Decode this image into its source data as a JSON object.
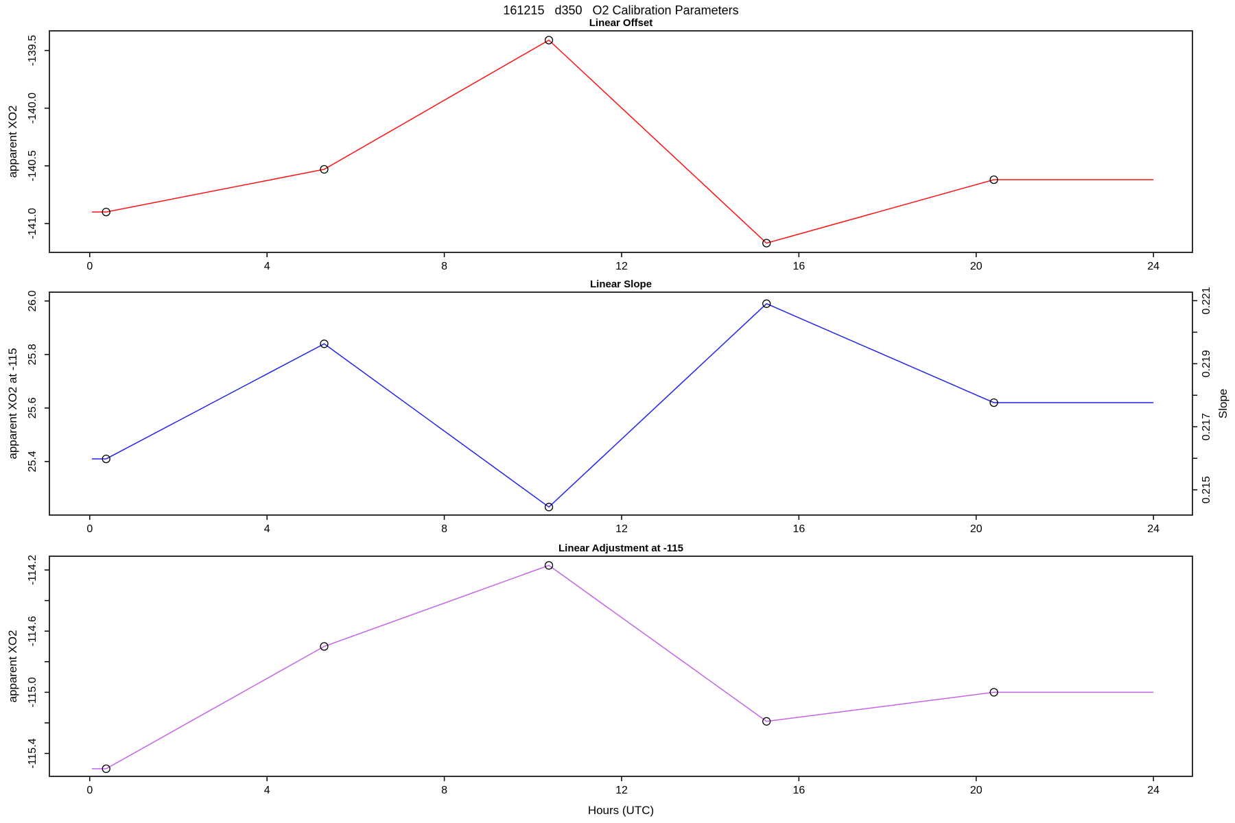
{
  "figure": {
    "title": "161215   d350   O2 Calibration Parameters",
    "xlabel": "Hours (UTC)",
    "x_ticks": {
      "values": [
        0,
        4,
        8,
        12,
        16,
        20,
        24
      ],
      "labels": [
        "0",
        "4",
        "8",
        "12",
        "16",
        "20",
        "24"
      ]
    },
    "xlim": [
      -0.91,
      24.88
    ]
  },
  "chart_data": [
    {
      "type": "line",
      "title": "Linear Offset",
      "ylabel": "apparent XO2",
      "color": "#ff1111",
      "point_color": "#000000",
      "x": [
        0.37,
        5.29,
        10.36,
        15.27,
        20.4
      ],
      "y": [
        -140.9,
        -140.53,
        -139.41,
        -141.17,
        -140.62
      ],
      "line_starts_at_x": 0.05,
      "line_extends_to_x": 24,
      "ylim": [
        -141.25,
        -139.33
      ],
      "y_ticks": {
        "values": [
          -141.0,
          -140.5,
          -140.0,
          -139.5
        ],
        "labels": [
          "-141.0",
          "-140.5",
          "-140.0",
          "-139.5"
        ]
      },
      "y_ticks_minor": []
    },
    {
      "type": "line",
      "title": "Linear Slope",
      "ylabel": "apparent XO2 at -115",
      "color": "#2222ee",
      "point_color": "#000000",
      "x": [
        0.37,
        5.29,
        10.36,
        15.27,
        20.4
      ],
      "y": [
        25.41,
        25.84,
        25.23,
        25.99,
        25.62
      ],
      "line_starts_at_x": 0.05,
      "line_extends_to_x": 24,
      "ylim": [
        25.2,
        26.033
      ],
      "y_ticks": {
        "values": [
          25.4,
          25.6,
          25.8,
          26.0
        ],
        "labels": [
          "25.4",
          "25.6",
          "25.8",
          "26.0"
        ]
      },
      "y_ticks_minor": [],
      "right_axis": {
        "label": "Slope",
        "ylim": [
          0.2142,
          0.22127
        ],
        "ticks": {
          "values": [
            0.215,
            0.217,
            0.219,
            0.221
          ],
          "labels": [
            "0.215",
            "0.217",
            "0.219",
            "0.221"
          ]
        },
        "ticks_minor": [
          0.216,
          0.218,
          0.22
        ]
      }
    },
    {
      "type": "line",
      "title": "Linear Adjustment at -115",
      "ylabel": "apparent XO2",
      "color": "#c364e6",
      "point_color": "#000000",
      "x": [
        0.37,
        5.29,
        10.36,
        15.27,
        20.4
      ],
      "y": [
        -115.5,
        -114.7,
        -114.17,
        -115.19,
        -115.0
      ],
      "line_starts_at_x": 0.05,
      "line_extends_to_x": 24,
      "ylim": [
        -115.55,
        -114.11
      ],
      "y_ticks": {
        "values": [
          -115.4,
          -115.0,
          -114.6,
          -114.2
        ],
        "labels": [
          "-115.4",
          "-115.0",
          "-114.6",
          "-114.2"
        ]
      },
      "y_ticks_minor": [
        -115.2,
        -114.8,
        -114.4
      ]
    }
  ]
}
